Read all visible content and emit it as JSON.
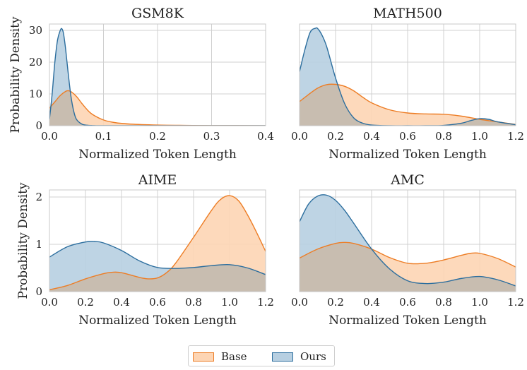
{
  "colors": {
    "base_line": "#ed7d25",
    "base_fill": "#fdd5b4",
    "ours_line": "#2c6e9e",
    "ours_fill": "#b7cfe1",
    "overlap_fill": "#c8bdb0"
  },
  "legend": {
    "base": "Base",
    "ours": "Ours",
    "placement": "bottom-center"
  },
  "chart_data": [
    {
      "type": "area",
      "title": "GSM8K",
      "xlabel": "Normalized Token Length",
      "ylabel": "Probability Density",
      "xlim": [
        0,
        0.4
      ],
      "ylim": [
        0,
        32
      ],
      "grid": true,
      "xticks": [
        0,
        0.1,
        0.2,
        0.3,
        0.4
      ],
      "xtick_labels": [
        "0.0",
        "0.1",
        "0.2",
        "0.3",
        "0.4"
      ],
      "yticks": [
        0,
        10,
        20,
        30
      ],
      "ytick_labels": [
        "0",
        "10",
        "20",
        "30"
      ],
      "series": [
        {
          "name": "Base",
          "x": [
            0,
            0.01,
            0.02,
            0.03,
            0.035,
            0.04,
            0.05,
            0.06,
            0.07,
            0.08,
            0.1,
            0.12,
            0.15,
            0.2,
            0.25,
            0.3,
            0.4
          ],
          "y": [
            5.5,
            7.5,
            9.5,
            10.8,
            11.0,
            10.7,
            9.2,
            7.0,
            5.0,
            3.5,
            1.8,
            1.0,
            0.5,
            0.2,
            0.1,
            0.05,
            0
          ]
        },
        {
          "name": "Ours",
          "x": [
            0,
            0.005,
            0.01,
            0.015,
            0.02,
            0.023,
            0.026,
            0.03,
            0.035,
            0.04,
            0.045,
            0.05,
            0.06,
            0.07,
            0.08,
            0.1,
            0.2,
            0.4
          ],
          "y": [
            2,
            10,
            20,
            27,
            30,
            30.5,
            29,
            24,
            16,
            9,
            4.5,
            2,
            0.5,
            0.15,
            0.05,
            0,
            0,
            0
          ]
        }
      ]
    },
    {
      "type": "area",
      "title": "MATH500",
      "xlabel": "Normalized Token Length",
      "ylabel": "",
      "xlim": [
        0,
        1.2
      ],
      "ylim": [
        0,
        32
      ],
      "grid": true,
      "xticks": [
        0,
        0.2,
        0.4,
        0.6,
        0.8,
        1.0,
        1.2
      ],
      "xtick_labels": [
        "0.0",
        "0.2",
        "0.4",
        "0.6",
        "0.8",
        "1.0",
        "1.2"
      ],
      "yticks": [
        0,
        10,
        20,
        30
      ],
      "ytick_labels": [],
      "series": [
        {
          "name": "Base",
          "x": [
            0,
            0.05,
            0.1,
            0.15,
            0.2,
            0.25,
            0.3,
            0.35,
            0.4,
            0.5,
            0.6,
            0.7,
            0.8,
            0.9,
            1.0,
            1.1,
            1.2
          ],
          "y": [
            7.6,
            9.8,
            11.8,
            12.9,
            13.0,
            12.4,
            11.0,
            9.0,
            7.2,
            5.0,
            4.0,
            3.7,
            3.6,
            3.0,
            2.0,
            1.2,
            0.4
          ]
        },
        {
          "name": "Ours",
          "x": [
            0,
            0.03,
            0.06,
            0.09,
            0.1,
            0.12,
            0.15,
            0.2,
            0.25,
            0.3,
            0.35,
            0.4,
            0.5,
            0.6,
            0.7,
            0.8,
            0.9,
            0.95,
            1.0,
            1.05,
            1.1,
            1.2
          ],
          "y": [
            17,
            24,
            29.5,
            30.7,
            30.6,
            29,
            25,
            15,
            7,
            2.5,
            0.8,
            0.2,
            0,
            0,
            0,
            0.1,
            0.8,
            1.6,
            2.2,
            2.0,
            1.2,
            0.3
          ]
        }
      ]
    },
    {
      "type": "area",
      "title": "AIME",
      "xlabel": "Normalized Token Length",
      "ylabel": "Probability Density",
      "xlim": [
        0,
        1.2
      ],
      "ylim": [
        0,
        2.15
      ],
      "grid": true,
      "xticks": [
        0,
        0.2,
        0.4,
        0.6,
        0.8,
        1.0,
        1.2
      ],
      "xtick_labels": [
        "0.0",
        "0.2",
        "0.4",
        "0.6",
        "0.8",
        "1.0",
        "1.2"
      ],
      "yticks": [
        0,
        1,
        2
      ],
      "ytick_labels": [
        "0",
        "1",
        "2"
      ],
      "series": [
        {
          "name": "Base",
          "x": [
            0,
            0.1,
            0.2,
            0.3,
            0.35,
            0.4,
            0.5,
            0.55,
            0.6,
            0.65,
            0.7,
            0.8,
            0.9,
            0.95,
            1.0,
            1.05,
            1.1,
            1.15,
            1.2
          ],
          "y": [
            0.04,
            0.13,
            0.27,
            0.38,
            0.41,
            0.4,
            0.3,
            0.27,
            0.29,
            0.4,
            0.6,
            1.15,
            1.72,
            1.95,
            2.03,
            1.92,
            1.62,
            1.25,
            0.85
          ]
        },
        {
          "name": "Ours",
          "x": [
            0,
            0.1,
            0.2,
            0.25,
            0.3,
            0.4,
            0.5,
            0.6,
            0.7,
            0.8,
            0.9,
            1.0,
            1.1,
            1.2
          ],
          "y": [
            0.73,
            0.95,
            1.05,
            1.06,
            1.03,
            0.87,
            0.65,
            0.51,
            0.49,
            0.51,
            0.55,
            0.57,
            0.5,
            0.36
          ]
        }
      ]
    },
    {
      "type": "area",
      "title": "AMC",
      "xlabel": "Normalized Token Length",
      "ylabel": "",
      "xlim": [
        0,
        1.2
      ],
      "ylim": [
        0,
        2.15
      ],
      "grid": true,
      "xticks": [
        0,
        0.2,
        0.4,
        0.6,
        0.8,
        1.0,
        1.2
      ],
      "xtick_labels": [
        "0.0",
        "0.2",
        "0.4",
        "0.6",
        "0.8",
        "1.0",
        "1.2"
      ],
      "yticks": [
        0,
        1,
        2
      ],
      "ytick_labels": [],
      "series": [
        {
          "name": "Base",
          "x": [
            0,
            0.1,
            0.2,
            0.25,
            0.3,
            0.4,
            0.5,
            0.6,
            0.7,
            0.8,
            0.9,
            0.95,
            1.0,
            1.1,
            1.2
          ],
          "y": [
            0.71,
            0.9,
            1.02,
            1.04,
            1.02,
            0.9,
            0.72,
            0.6,
            0.6,
            0.67,
            0.77,
            0.81,
            0.81,
            0.7,
            0.52
          ]
        },
        {
          "name": "Ours",
          "x": [
            0,
            0.05,
            0.1,
            0.15,
            0.2,
            0.25,
            0.3,
            0.4,
            0.5,
            0.6,
            0.7,
            0.8,
            0.9,
            1.0,
            1.1,
            1.2
          ],
          "y": [
            1.48,
            1.85,
            2.02,
            2.04,
            1.93,
            1.72,
            1.45,
            0.9,
            0.48,
            0.23,
            0.17,
            0.2,
            0.28,
            0.32,
            0.25,
            0.12
          ]
        }
      ]
    }
  ]
}
